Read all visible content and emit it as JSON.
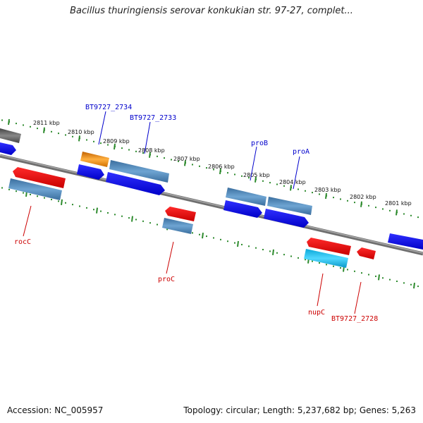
{
  "title": "Bacillus thuringiensis serovar konkukian str. 97-27, complet...",
  "footer": {
    "accession": "Accession: NC_005957",
    "summary": "Topology: circular; Length: 5,237,682 bp; Genes: 5,263"
  },
  "colors": {
    "backbone": "#7f7f7f",
    "tick": "#2e8b2e",
    "forward_cds": "#0000ee",
    "reverse_cds": "#ee0000",
    "gene_steelblue": "#4f86b8",
    "gene_orange": "#ff9010",
    "gene_cyan": "#10bfef",
    "gene_dark": "#555555",
    "label_forward": "#0000cc",
    "label_reverse": "#cc0000"
  },
  "scale_labels": [
    "2811 kbp",
    "2810 kbp",
    "2809 kbp",
    "2808 kbp",
    "2807 kbp",
    "2806 kbp",
    "2805 kbp",
    "2804 kbp",
    "2803 kbp",
    "2802 kbp",
    "2801 kbp"
  ],
  "gene_labels": {
    "forward": [
      "BT9727_2734",
      "BT9727_2733",
      "proB",
      "proA"
    ],
    "reverse": [
      "rocC",
      "proC",
      "nupC",
      "BT9727_2728"
    ]
  }
}
